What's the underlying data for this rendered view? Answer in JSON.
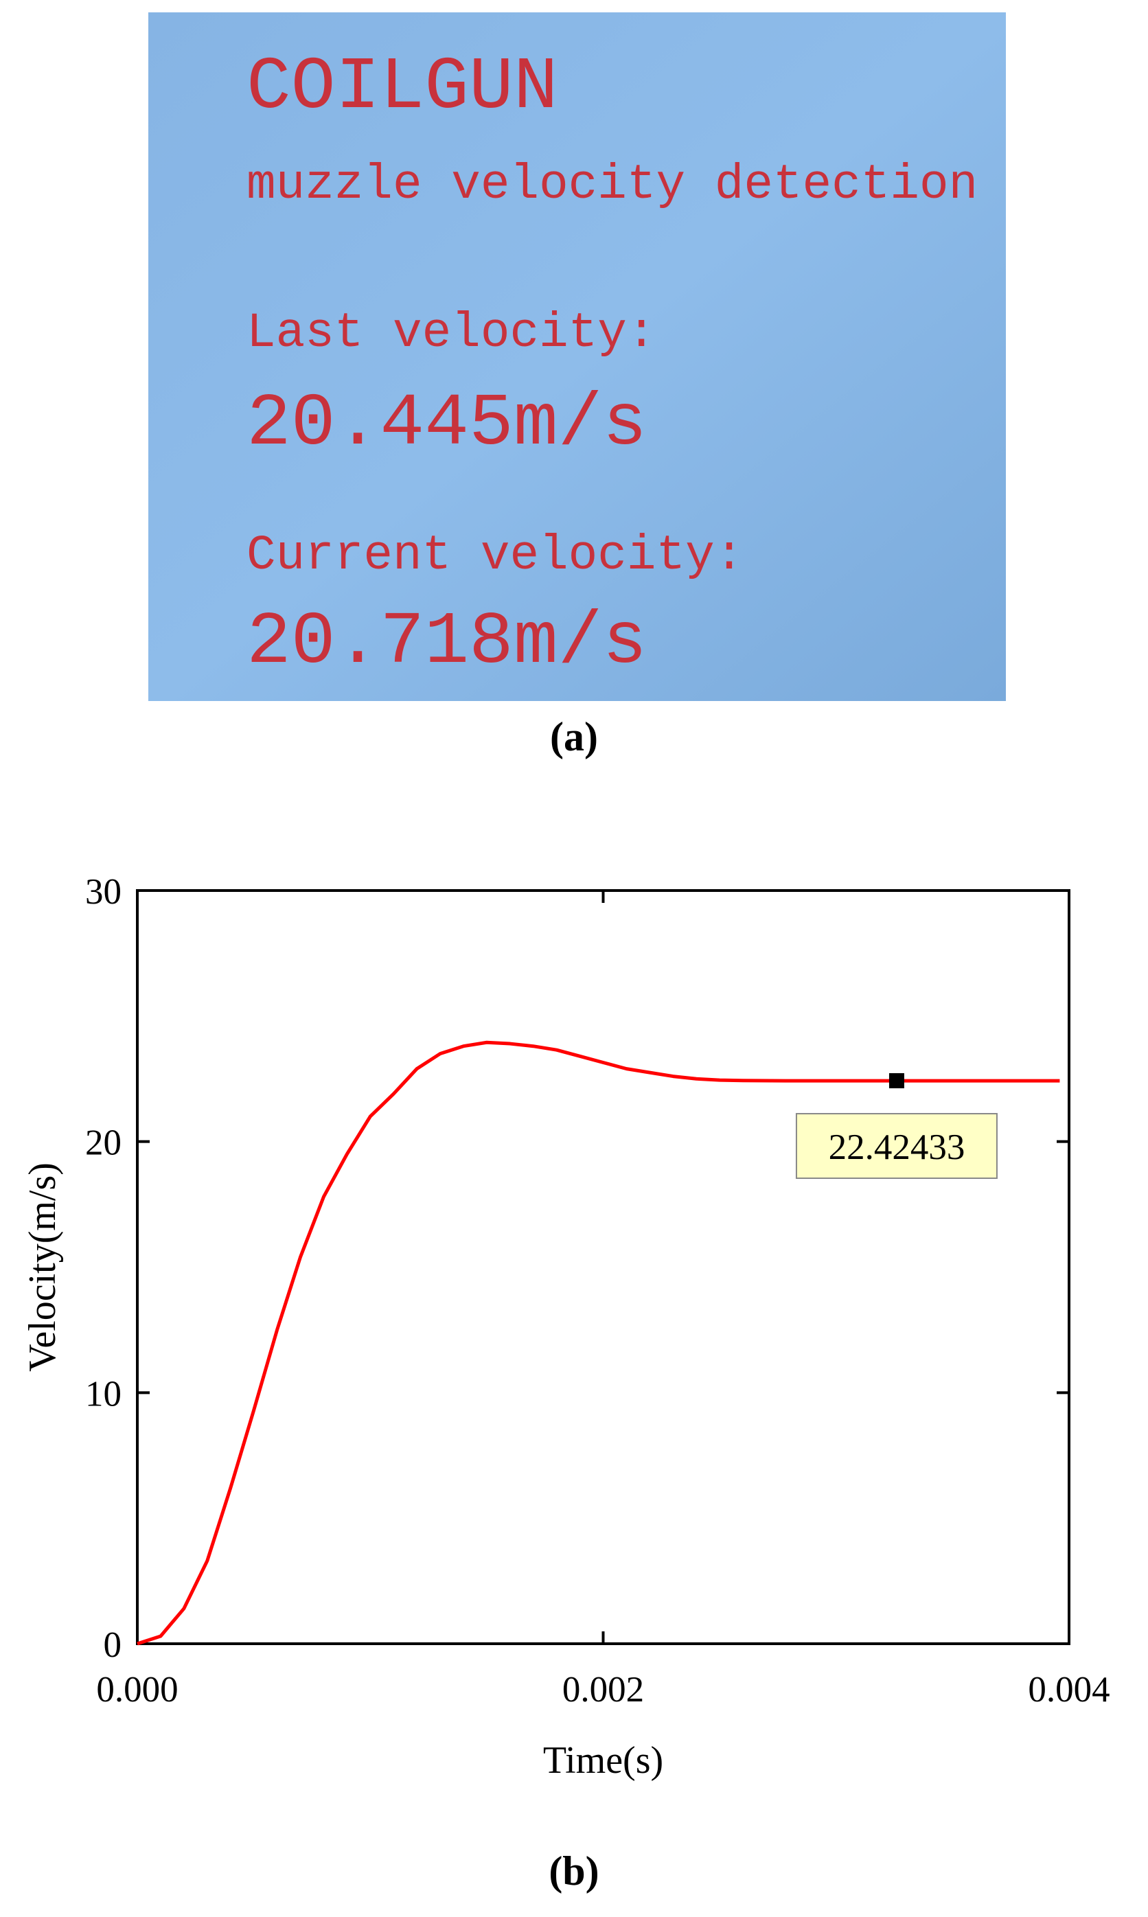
{
  "panel_a": {
    "title": "COILGUN",
    "subtitle": "muzzle velocity detection",
    "last_label": "Last velocity:",
    "last_value": "20.445m/s",
    "current_label": "Current velocity:",
    "current_value": "20.718m/s"
  },
  "captions": [
    "(a)",
    "(b)"
  ],
  "chart_data": {
    "type": "line",
    "x_label": "Time(s)",
    "y_label": "Velocity(m/s)",
    "x": [
      0,
      0.0001,
      0.0002,
      0.0003,
      0.0004,
      0.0005,
      0.0006,
      0.0007,
      0.0008,
      0.0009,
      0.001,
      0.0011,
      0.0012,
      0.0013,
      0.0014,
      0.0015,
      0.0016,
      0.0017,
      0.0018,
      0.0019,
      0.002,
      0.0021,
      0.0022,
      0.0023,
      0.0024,
      0.0025,
      0.0026,
      0.0028,
      0.003,
      0.0032,
      0.0034,
      0.0036,
      0.0038,
      0.00396
    ],
    "series": [
      {
        "color": "#ff0000",
        "values": [
          0,
          0.3,
          1.4,
          3.3,
          6.2,
          9.3,
          12.5,
          15.4,
          17.8,
          19.5,
          21.0,
          21.9,
          22.9,
          23.5,
          23.8,
          23.95,
          23.9,
          23.8,
          23.65,
          23.4,
          23.15,
          22.9,
          22.75,
          22.6,
          22.5,
          22.45,
          22.43,
          22.42,
          22.42,
          22.42,
          22.42,
          22.42,
          22.42,
          22.42
        ]
      }
    ],
    "annotation": {
      "x": 0.00326,
      "value": 22.42433
    },
    "xlim": [
      0,
      0.004
    ],
    "ylim": [
      0,
      30
    ],
    "xticks": [
      {
        "value": 0,
        "label": "0.000"
      },
      {
        "value": 0.002,
        "label": "0.002"
      },
      {
        "value": 0.004,
        "label": "0.004"
      }
    ],
    "yticks": [
      0,
      10,
      20,
      30
    ],
    "grid": false
  }
}
